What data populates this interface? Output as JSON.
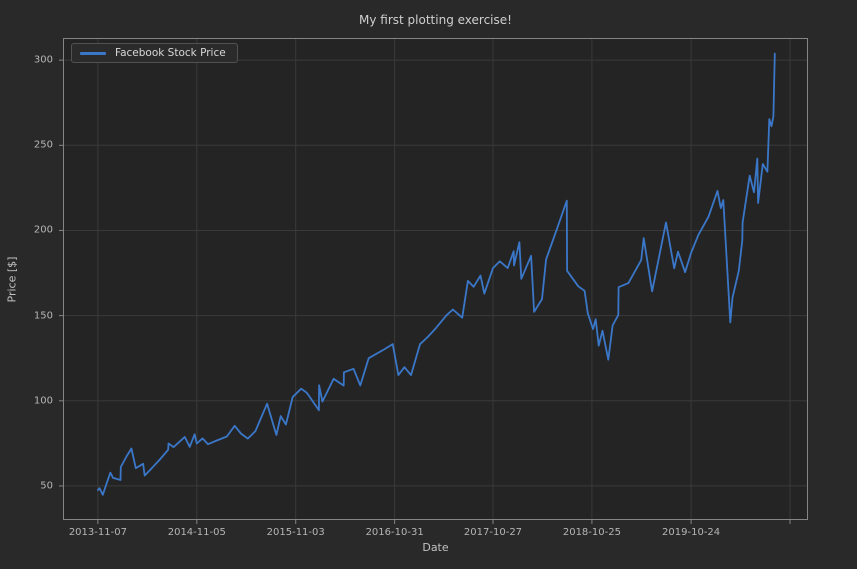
{
  "colors": {
    "figure_background": "#292929",
    "axes_background": "#242424",
    "grid": "#3a3a3a",
    "spine": "#858585",
    "line": "#3b77c8",
    "title_text": "#cfcfcf",
    "tick_text": "#b5b5b5"
  },
  "chart_data": {
    "type": "line",
    "title": "My first plotting exercise!",
    "xlabel": "Date",
    "ylabel": "Price [$]",
    "legend": [
      "Facebook Stock Price"
    ],
    "legend_position": "upper left",
    "grid": true,
    "line_color": "#3b77c8",
    "ylim": [
      30,
      313
    ],
    "xlim": [
      "2013-07-02",
      "2020-12-26"
    ],
    "y_ticks": [
      50,
      100,
      150,
      200,
      250,
      300
    ],
    "x_ticks": [
      {
        "date": "2013-11-07",
        "label": "2013-11-07"
      },
      {
        "date": "2014-11-05",
        "label": "2014-11-05"
      },
      {
        "date": "2015-11-03",
        "label": "2015-11-03"
      },
      {
        "date": "2016-10-31",
        "label": "2016-10-31"
      },
      {
        "date": "2017-10-27",
        "label": "2017-10-27"
      },
      {
        "date": "2018-10-25",
        "label": "2018-10-25"
      },
      {
        "date": "2019-10-24",
        "label": "2019-10-24"
      },
      {
        "date": "2020-10-21",
        "label": ""
      }
    ],
    "series": [
      {
        "name": "Facebook Stock Price",
        "points": [
          [
            "2013-11-07",
            47.6
          ],
          [
            "2013-11-13",
            48.7
          ],
          [
            "2013-11-25",
            44.8
          ],
          [
            "2013-12-04",
            49.0
          ],
          [
            "2013-12-13",
            53.3
          ],
          [
            "2013-12-23",
            57.8
          ],
          [
            "2014-01-02",
            54.7
          ],
          [
            "2014-01-29",
            53.5
          ],
          [
            "2014-01-30",
            61.1
          ],
          [
            "2014-02-20",
            67.3
          ],
          [
            "2014-03-10",
            72.0
          ],
          [
            "2014-03-26",
            60.4
          ],
          [
            "2014-04-22",
            63.0
          ],
          [
            "2014-04-28",
            56.1
          ],
          [
            "2014-05-22",
            60.1
          ],
          [
            "2014-06-24",
            65.8
          ],
          [
            "2014-07-23",
            71.3
          ],
          [
            "2014-07-24",
            74.9
          ],
          [
            "2014-08-12",
            72.8
          ],
          [
            "2014-09-22",
            78.8
          ],
          [
            "2014-10-10",
            72.9
          ],
          [
            "2014-10-28",
            80.3
          ],
          [
            "2014-11-05",
            74.9
          ],
          [
            "2014-11-26",
            77.9
          ],
          [
            "2014-12-16",
            74.5
          ],
          [
            "2015-01-13",
            76.4
          ],
          [
            "2015-02-23",
            79.0
          ],
          [
            "2015-03-24",
            85.3
          ],
          [
            "2015-04-16",
            80.8
          ],
          [
            "2015-05-11",
            77.8
          ],
          [
            "2015-06-08",
            82.2
          ],
          [
            "2015-07-21",
            98.3
          ],
          [
            "2015-08-24",
            79.9
          ],
          [
            "2015-09-09",
            91.0
          ],
          [
            "2015-09-28",
            86.1
          ],
          [
            "2015-10-23",
            102.2
          ],
          [
            "2015-11-23",
            107.1
          ],
          [
            "2015-12-14",
            104.6
          ],
          [
            "2016-01-27",
            94.4
          ],
          [
            "2016-01-28",
            109.1
          ],
          [
            "2016-02-09",
            99.5
          ],
          [
            "2016-03-21",
            112.9
          ],
          [
            "2016-04-27",
            108.9
          ],
          [
            "2016-04-28",
            116.7
          ],
          [
            "2016-06-02",
            118.8
          ],
          [
            "2016-06-27",
            109.0
          ],
          [
            "2016-07-28",
            125.0
          ],
          [
            "2016-09-22",
            130.1
          ],
          [
            "2016-10-24",
            133.3
          ],
          [
            "2016-11-14",
            115.1
          ],
          [
            "2016-12-06",
            119.7
          ],
          [
            "2016-12-30",
            115.1
          ],
          [
            "2017-02-01",
            133.2
          ],
          [
            "2017-03-01",
            137.4
          ],
          [
            "2017-03-30",
            142.4
          ],
          [
            "2017-05-10",
            150.3
          ],
          [
            "2017-06-02",
            153.6
          ],
          [
            "2017-07-06",
            148.8
          ],
          [
            "2017-07-27",
            170.4
          ],
          [
            "2017-08-17",
            166.9
          ],
          [
            "2017-09-11",
            173.5
          ],
          [
            "2017-09-25",
            162.9
          ],
          [
            "2017-10-27",
            177.9
          ],
          [
            "2017-11-21",
            181.9
          ],
          [
            "2017-12-20",
            177.9
          ],
          [
            "2018-01-11",
            187.8
          ],
          [
            "2018-01-12",
            179.4
          ],
          [
            "2018-02-01",
            193.1
          ],
          [
            "2018-02-08",
            171.6
          ],
          [
            "2018-03-16",
            185.1
          ],
          [
            "2018-03-27",
            152.2
          ],
          [
            "2018-04-25",
            159.7
          ],
          [
            "2018-05-10",
            183.0
          ],
          [
            "2018-06-20",
            201.5
          ],
          [
            "2018-07-25",
            217.5
          ],
          [
            "2018-07-26",
            176.3
          ],
          [
            "2018-09-05",
            167.2
          ],
          [
            "2018-09-28",
            164.5
          ],
          [
            "2018-10-10",
            151.4
          ],
          [
            "2018-10-29",
            142.1
          ],
          [
            "2018-11-08",
            147.9
          ],
          [
            "2018-11-19",
            132.4
          ],
          [
            "2018-12-03",
            141.1
          ],
          [
            "2018-12-24",
            124.1
          ],
          [
            "2019-01-09",
            144.2
          ],
          [
            "2019-01-30",
            150.4
          ],
          [
            "2019-01-31",
            166.7
          ],
          [
            "2019-03-08",
            169.1
          ],
          [
            "2019-04-24",
            182.6
          ],
          [
            "2019-05-03",
            195.5
          ],
          [
            "2019-06-03",
            164.2
          ],
          [
            "2019-07-24",
            204.7
          ],
          [
            "2019-08-23",
            177.8
          ],
          [
            "2019-09-06",
            187.5
          ],
          [
            "2019-10-02",
            175.5
          ],
          [
            "2019-10-24",
            186.9
          ],
          [
            "2019-11-20",
            197.5
          ],
          [
            "2019-12-27",
            208.1
          ],
          [
            "2020-01-29",
            223.2
          ],
          [
            "2020-02-10",
            213.1
          ],
          [
            "2020-02-19",
            217.8
          ],
          [
            "2020-03-16",
            146.0
          ],
          [
            "2020-03-24",
            160.5
          ],
          [
            "2020-04-16",
            176.3
          ],
          [
            "2020-04-29",
            194.2
          ],
          [
            "2020-04-30",
            204.7
          ],
          [
            "2020-05-26",
            232.2
          ],
          [
            "2020-06-11",
            222.4
          ],
          [
            "2020-06-23",
            242.2
          ],
          [
            "2020-06-26",
            216.1
          ],
          [
            "2020-07-13",
            239.0
          ],
          [
            "2020-07-30",
            234.5
          ],
          [
            "2020-08-06",
            265.3
          ],
          [
            "2020-08-14",
            261.2
          ],
          [
            "2020-08-21",
            267.0
          ],
          [
            "2020-08-26",
            303.9
          ]
        ]
      }
    ]
  }
}
